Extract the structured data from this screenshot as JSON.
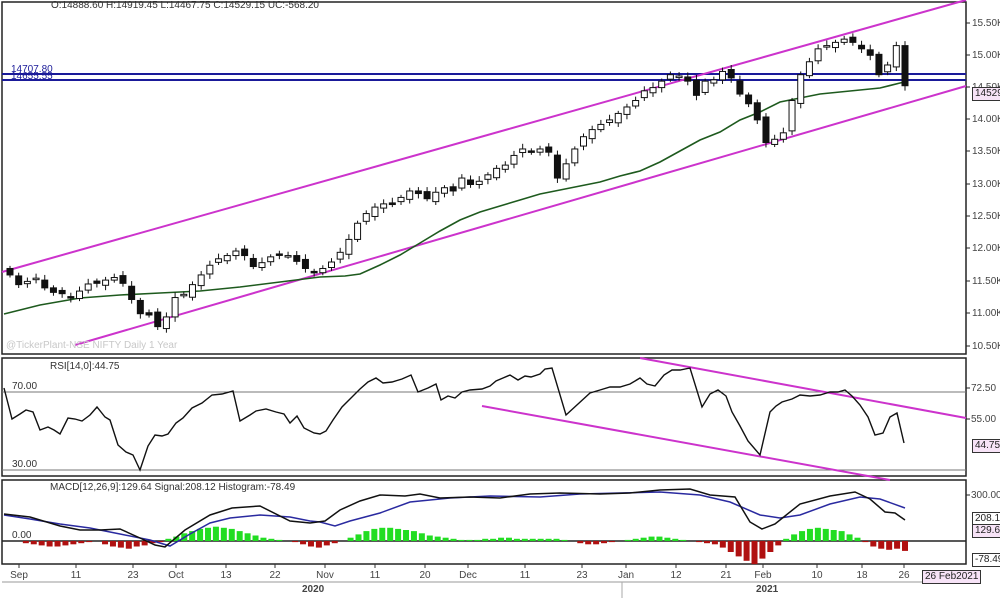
{
  "header": {
    "ohlc": "O:14888.60  H:14919.45  L:14467.75  C:14529.15  UC:-568.20"
  },
  "price_panel": {
    "hline_labels": [
      "14707.80",
      "14655.55"
    ],
    "watermark": "@TickerPlant-NSE NIFTY Daily 1 Year",
    "last_price_tag": "14529.",
    "y_ticks": [
      "15.50K",
      "15.00K",
      "14.50K",
      "14.00K",
      "13.50K",
      "13.00K",
      "12.50K",
      "12.00K",
      "11.50K",
      "11.00K",
      "10.50K"
    ]
  },
  "rsi_panel": {
    "title": "RSI[14,0]:44.75",
    "level_high": "70.00",
    "level_low": "30.00",
    "y_ticks": [
      "72.50",
      "55.00"
    ],
    "value_tag": "44.75"
  },
  "macd_panel": {
    "title": "MACD[12,26,9]:129.64  Signal:208.12  Histogram:-78.49",
    "zero_label": "0.00",
    "y_ticks": [
      "300.00"
    ],
    "signal_tag": "208.12",
    "macd_tag": "129.64",
    "hist_tag": "-78.49"
  },
  "x_axis": {
    "ticks": [
      "Sep",
      "11",
      "23",
      "Oct",
      "13",
      "22",
      "Nov",
      "11",
      "20",
      "Dec",
      "11",
      "23",
      "Jan",
      "12",
      "21",
      "Feb",
      "10",
      "18",
      "26"
    ],
    "years": [
      "2020",
      "2021"
    ],
    "date_tag": "26 Feb2021"
  },
  "colors": {
    "channel": "#cc33cc",
    "hline": "#1a1a99",
    "sma": "#1e5a1e",
    "macd": "#111111",
    "signal": "#2a2aa0",
    "hist_pos": "#22dd22",
    "hist_neg": "#b01010"
  },
  "chart_data": [
    {
      "type": "candlestick",
      "title": "NSE NIFTY Daily 1 Year",
      "x_range": [
        "2020-09-01",
        "2021-02-26"
      ],
      "ylim": [
        10500,
        15800
      ],
      "last": {
        "open": 14888.6,
        "high": 14919.45,
        "low": 14467.75,
        "close": 14529.15,
        "change": -568.2
      },
      "horizontal_lines": [
        14707.8,
        14655.55
      ],
      "approx_closes": [
        11600,
        11450,
        11500,
        11550,
        11400,
        11330,
        11310,
        11250,
        11350,
        11460,
        11470,
        11520,
        11560,
        11470,
        11220,
        11000,
        10980,
        10800,
        10950,
        11250,
        11300,
        11450,
        11600,
        11750,
        11850,
        11900,
        11970,
        11900,
        11730,
        11790,
        11880,
        11920,
        11900,
        11810,
        11700,
        11650,
        11700,
        11800,
        11950,
        12150,
        12400,
        12550,
        12650,
        12700,
        12690,
        12800,
        12900,
        12860,
        12780,
        12880,
        12950,
        12900,
        13100,
        13000,
        13050,
        13150,
        13250,
        13300,
        13450,
        13550,
        13500,
        13550,
        13500,
        13100,
        13320,
        13550,
        13740,
        13850,
        13930,
        14000,
        14100,
        14200,
        14300,
        14450,
        14500,
        14600,
        14700,
        14680,
        14600,
        14380,
        14600,
        14620,
        14750,
        14650,
        14400,
        14250,
        14000,
        13650,
        13700,
        13800,
        14300,
        14700,
        14900,
        15100,
        15150,
        15200,
        15250,
        15200,
        15100,
        15000,
        14700,
        14850,
        15150,
        14529
      ]
    },
    {
      "type": "line",
      "title": "RSI[14,0]",
      "ylim": [
        25,
        80
      ],
      "levels": [
        70,
        30
      ],
      "last": 44.75
    },
    {
      "type": "line+bar",
      "title": "MACD[12,26,9]",
      "series": [
        {
          "name": "MACD",
          "last": 129.64
        },
        {
          "name": "Signal",
          "last": 208.12
        },
        {
          "name": "Histogram",
          "last": -78.49
        }
      ]
    }
  ]
}
